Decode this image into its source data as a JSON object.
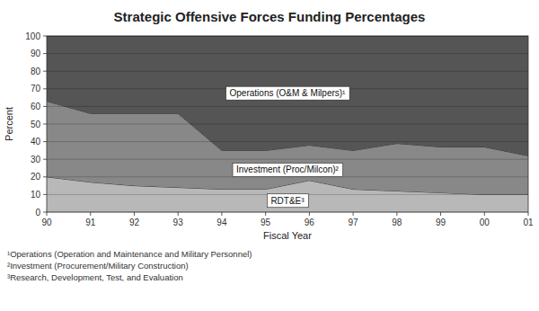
{
  "chart_data": {
    "type": "area",
    "title": "Strategic Offensive Forces Funding Percentages",
    "x_label": "Fiscal Year",
    "y_label": "Percent",
    "categories": [
      "90",
      "91",
      "92",
      "93",
      "94",
      "95",
      "96",
      "97",
      "98",
      "99",
      "00",
      "01"
    ],
    "stacked": true,
    "grid": true,
    "series": [
      {
        "name": "RDT&E³",
        "color": "#b8b8b8",
        "values": [
          20,
          17,
          15,
          14,
          13,
          13,
          18,
          13,
          12,
          11,
          10,
          10
        ]
      },
      {
        "name": "Investment (Proc/Milcon)²",
        "color": "#888888",
        "values": [
          43,
          39,
          41,
          42,
          22,
          22,
          20,
          22,
          27,
          26,
          27,
          22
        ]
      },
      {
        "name": "Operations (O&M & Milpers)¹",
        "color": "#555555",
        "values": [
          37,
          44,
          44,
          44,
          65,
          65,
          62,
          65,
          61,
          63,
          63,
          68
        ]
      }
    ],
    "ylim": [
      0,
      100
    ],
    "yticks": [
      0,
      10,
      20,
      30,
      40,
      50,
      60,
      70,
      80,
      90,
      100
    ],
    "annotations": [
      "¹Operations (Operation and Maintenance and Military Personnel)",
      "²Investment (Procurement/Military Construction)",
      "³Research, Development, Test, and Evaluation"
    ]
  }
}
